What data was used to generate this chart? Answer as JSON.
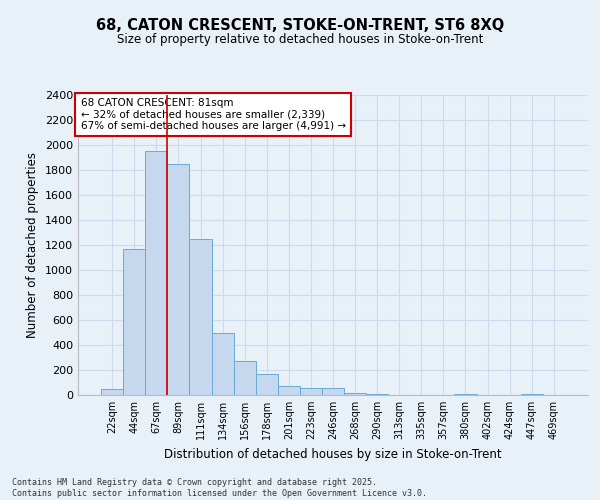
{
  "title_line1": "68, CATON CRESCENT, STOKE-ON-TRENT, ST6 8XQ",
  "title_line2": "Size of property relative to detached houses in Stoke-on-Trent",
  "xlabel": "Distribution of detached houses by size in Stoke-on-Trent",
  "ylabel": "Number of detached properties",
  "categories": [
    "22sqm",
    "44sqm",
    "67sqm",
    "89sqm",
    "111sqm",
    "134sqm",
    "156sqm",
    "178sqm",
    "201sqm",
    "223sqm",
    "246sqm",
    "268sqm",
    "290sqm",
    "313sqm",
    "335sqm",
    "357sqm",
    "380sqm",
    "402sqm",
    "424sqm",
    "447sqm",
    "469sqm"
  ],
  "values": [
    50,
    1165,
    1950,
    1850,
    1250,
    495,
    270,
    165,
    75,
    55,
    55,
    20,
    10,
    0,
    0,
    0,
    5,
    0,
    0,
    5,
    0
  ],
  "bar_color": "#c5d8ee",
  "bar_edge_color": "#6aaad4",
  "grid_color": "#ccdaec",
  "background_color": "#e8f0f8",
  "annotation_text": "68 CATON CRESCENT: 81sqm\n← 32% of detached houses are smaller (2,339)\n67% of semi-detached houses are larger (4,991) →",
  "annotation_box_color": "#ffffff",
  "annotation_box_edge": "#cc0000",
  "vline_color": "#cc0000",
  "vline_x": 2.5,
  "ylim": [
    0,
    2400
  ],
  "yticks": [
    0,
    200,
    400,
    600,
    800,
    1000,
    1200,
    1400,
    1600,
    1800,
    2000,
    2200,
    2400
  ],
  "footer_line1": "Contains HM Land Registry data © Crown copyright and database right 2025.",
  "footer_line2": "Contains public sector information licensed under the Open Government Licence v3.0."
}
